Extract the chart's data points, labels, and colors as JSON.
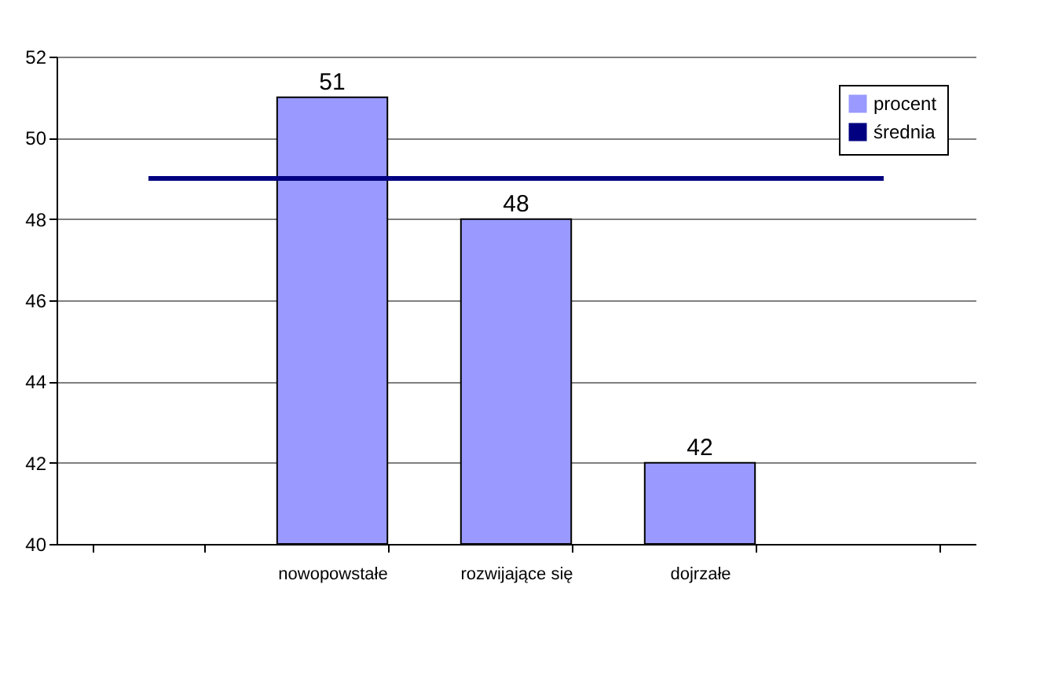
{
  "chart_data": {
    "type": "bar",
    "categories": [
      null,
      "nowopowstałe",
      "rozwijające się",
      "dojrzałe",
      null
    ],
    "series": [
      {
        "name": "procent",
        "color": "#9999ff",
        "values": [
          null,
          51,
          48,
          42,
          null
        ],
        "value_labels": [
          null,
          "51",
          "48",
          "42",
          null
        ]
      },
      {
        "name": "średnia",
        "type": "line",
        "color": "#000080",
        "values": [
          49,
          49,
          49,
          49,
          49
        ]
      }
    ],
    "ylim": [
      40,
      52
    ],
    "yticks": [
      40,
      42,
      44,
      46,
      48,
      50,
      52
    ],
    "grid": "y",
    "legend": "top right"
  }
}
